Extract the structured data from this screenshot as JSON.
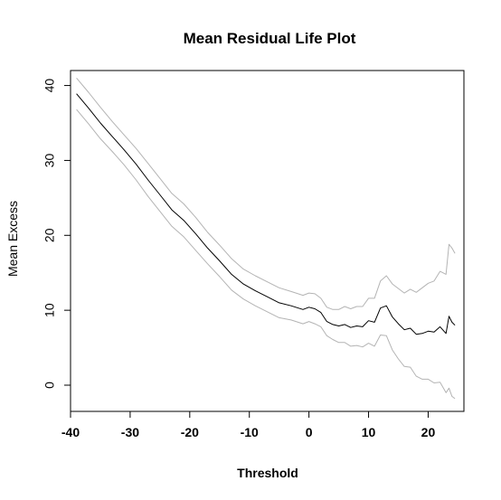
{
  "chart_data": {
    "type": "line",
    "title": "Mean Residual Life Plot",
    "xlabel": "Threshold",
    "ylabel": "Mean Excess",
    "xlim": [
      -40,
      26
    ],
    "ylim": [
      -3.5,
      42
    ],
    "xticks": [
      -40,
      -30,
      -20,
      -10,
      0,
      10,
      20
    ],
    "yticks": [
      0,
      10,
      20,
      30,
      40
    ],
    "grid": false,
    "legend": "none",
    "colors": {
      "mean": "#000000",
      "ci": "#b4b4b4",
      "axis": "#000000"
    },
    "x": [
      -39,
      -37,
      -35,
      -33,
      -31,
      -29,
      -27,
      -25,
      -23,
      -21,
      -19,
      -17,
      -15,
      -13,
      -11,
      -9,
      -7,
      -5,
      -3,
      -1,
      0,
      1,
      2,
      3,
      4,
      5,
      6,
      7,
      8,
      9,
      10,
      11,
      12,
      13,
      14,
      15,
      16,
      17,
      18,
      19,
      20,
      21,
      22,
      23,
      23.5,
      24,
      24.5
    ],
    "series": [
      {
        "role": "mean",
        "values": [
          38.9,
          37.0,
          35.0,
          33.2,
          31.4,
          29.5,
          27.4,
          25.4,
          23.4,
          22.0,
          20.2,
          18.3,
          16.6,
          14.8,
          13.5,
          12.6,
          11.8,
          11.0,
          10.6,
          10.1,
          10.4,
          10.2,
          9.7,
          8.5,
          8.1,
          7.9,
          8.1,
          7.7,
          7.9,
          7.8,
          8.6,
          8.4,
          10.3,
          10.6,
          9.1,
          8.2,
          7.4,
          7.6,
          6.8,
          6.9,
          7.2,
          7.1,
          7.8,
          6.9,
          9.2,
          8.4,
          8.0
        ]
      },
      {
        "role": "upper-ci",
        "values": [
          41.0,
          39.1,
          37.1,
          35.2,
          33.4,
          31.6,
          29.6,
          27.6,
          25.6,
          24.2,
          22.4,
          20.4,
          18.7,
          16.9,
          15.5,
          14.6,
          13.8,
          13.0,
          12.5,
          12.0,
          12.3,
          12.2,
          11.6,
          10.4,
          10.1,
          10.1,
          10.5,
          10.2,
          10.5,
          10.5,
          11.6,
          11.6,
          13.9,
          14.6,
          13.5,
          12.9,
          12.3,
          12.8,
          12.4,
          13.0,
          13.6,
          13.9,
          15.2,
          14.8,
          18.8,
          18.3,
          17.6
        ]
      },
      {
        "role": "lower-ci",
        "values": [
          36.8,
          34.9,
          32.9,
          31.2,
          29.4,
          27.4,
          25.2,
          23.2,
          21.2,
          19.8,
          18.0,
          16.2,
          14.5,
          12.7,
          11.5,
          10.6,
          9.8,
          9.0,
          8.7,
          8.2,
          8.5,
          8.2,
          7.8,
          6.6,
          6.1,
          5.7,
          5.7,
          5.2,
          5.3,
          5.1,
          5.6,
          5.2,
          6.7,
          6.6,
          4.7,
          3.5,
          2.5,
          2.4,
          1.2,
          0.8,
          0.8,
          0.3,
          0.4,
          -1.0,
          -0.4,
          -1.5,
          -1.8
        ]
      }
    ]
  }
}
